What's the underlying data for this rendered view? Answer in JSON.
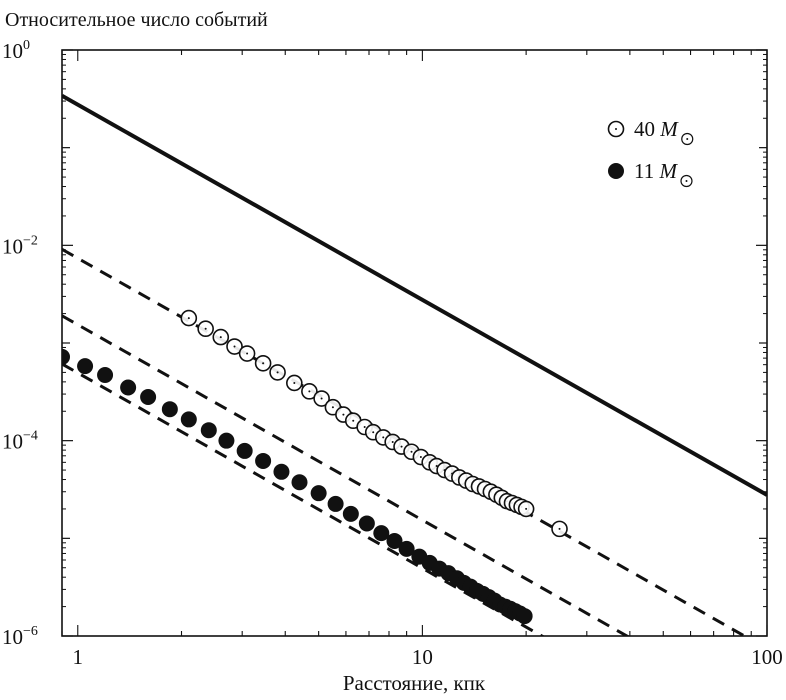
{
  "chart_data": {
    "type": "scatter",
    "ylabel": "Относительное число событий",
    "xlabel": "Расстояние, кпк",
    "x_scale": "log",
    "y_scale": "log",
    "xlim": [
      0.9,
      100
    ],
    "ylim": [
      1e-06,
      1
    ],
    "x_ticks": [
      {
        "value": 1,
        "label": "1"
      },
      {
        "value": 10,
        "label": "10"
      },
      {
        "value": 100,
        "label": "100"
      }
    ],
    "y_ticks": [
      {
        "value": 1e-06,
        "base": "10",
        "exp": "−6"
      },
      {
        "value": 0.0001,
        "base": "10",
        "exp": "−4"
      },
      {
        "value": 0.01,
        "base": "10",
        "exp": "−2"
      },
      {
        "value": 1,
        "base": "10",
        "exp": "0"
      }
    ],
    "legend": {
      "position": "top-right",
      "entries": [
        {
          "number": "40",
          "symbol": "M",
          "marker": "open-circle"
        },
        {
          "number": "11",
          "symbol": "M",
          "marker": "filled-circle"
        }
      ]
    },
    "series": [
      {
        "marker": "open-circle",
        "x": [
          2.1,
          2.35,
          2.6,
          2.85,
          3.1,
          3.45,
          3.8,
          4.25,
          4.7,
          5.1,
          5.5,
          5.9,
          6.3,
          6.8,
          7.2,
          7.7,
          8.2,
          8.7,
          9.3,
          9.9,
          10.5,
          11.0,
          11.6,
          12.2,
          12.8,
          13.4,
          14.0,
          14.6,
          15.2,
          15.8,
          16.4,
          17.0,
          17.6,
          18.2,
          18.8,
          19.4,
          20.0,
          25.0
        ],
        "y": [
          0.0018,
          0.0014,
          0.00115,
          0.00092,
          0.00078,
          0.00062,
          0.0005,
          0.00039,
          0.00032,
          0.00027,
          0.00022,
          0.000185,
          0.00016,
          0.000138,
          0.000122,
          0.000108,
          9.7e-05,
          8.7e-05,
          7.7e-05,
          6.8e-05,
          6e-05,
          5.5e-05,
          5e-05,
          4.6e-05,
          4.2e-05,
          3.9e-05,
          3.6e-05,
          3.4e-05,
          3.2e-05,
          3e-05,
          2.8e-05,
          2.6e-05,
          2.4e-05,
          2.3e-05,
          2.2e-05,
          2.1e-05,
          2e-05,
          1.25e-05
        ]
      },
      {
        "marker": "filled-circle",
        "x": [
          0.9,
          1.05,
          1.2,
          1.4,
          1.6,
          1.85,
          2.1,
          2.4,
          2.7,
          3.05,
          3.45,
          3.9,
          4.4,
          5.0,
          5.6,
          6.2,
          6.9,
          7.6,
          8.3,
          9.0,
          9.8,
          10.5,
          11.2,
          11.9,
          12.6,
          13.2,
          13.8,
          14.4,
          15.0,
          15.6,
          16.2,
          16.8,
          17.4,
          18.0,
          18.6,
          19.2,
          19.8
        ],
        "y": [
          0.00072,
          0.00058,
          0.00047,
          0.00035,
          0.00028,
          0.00021,
          0.000165,
          0.000128,
          0.0001,
          7.85e-05,
          6.2e-05,
          4.8e-05,
          3.75e-05,
          2.9e-05,
          2.25e-05,
          1.78e-05,
          1.42e-05,
          1.13e-05,
          9.4e-06,
          7.8e-06,
          6.5e-06,
          5.6e-06,
          4.9e-06,
          4.4e-06,
          3.9e-06,
          3.5e-06,
          3.2e-06,
          2.9e-06,
          2.7e-06,
          2.5e-06,
          2.3e-06,
          2.1e-06,
          2e-06,
          1.9e-06,
          1.8e-06,
          1.7e-06,
          1.6e-06
        ]
      }
    ],
    "lines": [
      {
        "style": "solid",
        "points": [
          [
            0.9,
            0.34
          ],
          [
            100,
            2.78e-05
          ]
        ]
      },
      {
        "style": "dashed",
        "points": [
          [
            0.9,
            0.0091
          ],
          [
            100,
            7.4e-07
          ]
        ]
      },
      {
        "style": "dashed",
        "points": [
          [
            0.9,
            0.0019
          ],
          [
            40,
            9.6e-07
          ]
        ]
      },
      {
        "style": "dashed",
        "points": [
          [
            0.9,
            0.00061
          ],
          [
            25,
            7.9e-07
          ]
        ]
      }
    ]
  }
}
